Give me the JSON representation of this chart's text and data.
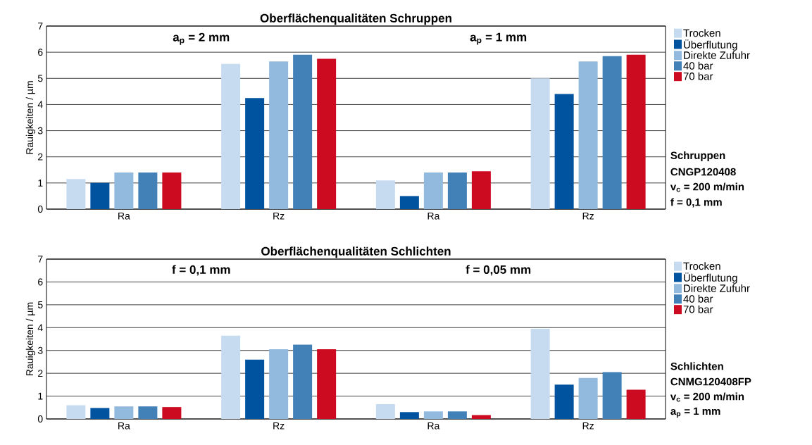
{
  "chart_data": [
    {
      "type": "bar",
      "title": "Oberflächenqualitäten  Schruppen",
      "ylabel": "Rauigkeiten / µm",
      "categories": [
        "Ra",
        "Rz",
        "Ra",
        "Rz"
      ],
      "ylim": [
        0,
        7
      ],
      "yticks": [
        0,
        1,
        2,
        3,
        4,
        5,
        6,
        7
      ],
      "grid": "y",
      "legend": "right",
      "series": [
        {
          "name": "Trocken",
          "color": "#c6dbf0",
          "values": [
            1.15,
            5.55,
            1.1,
            5.0
          ]
        },
        {
          "name": "Überflutung",
          "color": "#00539f",
          "values": [
            1.0,
            4.25,
            0.5,
            4.4
          ]
        },
        {
          "name": "Direkte Zufuhr",
          "color": "#92badf",
          "values": [
            1.4,
            5.65,
            1.4,
            5.65
          ]
        },
        {
          "name": "40 bar",
          "color": "#4280b8",
          "values": [
            1.4,
            5.9,
            1.4,
            5.85
          ]
        },
        {
          "name": "70 bar",
          "color": "#cc0a20",
          "values": [
            1.4,
            5.75,
            1.45,
            5.9
          ]
        }
      ],
      "annotations": [
        "a$_{p}$ = 2 mm",
        "a$_{p}$ = 1 mm",
        "Schruppen",
        "CNGP120408",
        "v$_{c}$ = 200 m/min",
        "f = 0,1 mm"
      ]
    },
    {
      "type": "bar",
      "title": "Oberflächenqualitäten  Schlichten",
      "ylabel": "Rauigkeiten / µm",
      "categories": [
        "Ra",
        "Rz",
        "Ra",
        "Rz"
      ],
      "ylim": [
        0,
        7
      ],
      "yticks": [
        0,
        1,
        2,
        3,
        4,
        5,
        6,
        7
      ],
      "grid": "y",
      "legend": "right",
      "series": [
        {
          "name": "Trocken",
          "color": "#c6dbf0",
          "values": [
            0.6,
            3.65,
            0.65,
            3.95
          ]
        },
        {
          "name": "Überflutung",
          "color": "#00539f",
          "values": [
            0.48,
            2.6,
            0.3,
            1.5
          ]
        },
        {
          "name": "Direkte Zufuhr",
          "color": "#92badf",
          "values": [
            0.55,
            3.05,
            0.33,
            1.8
          ]
        },
        {
          "name": "40 bar",
          "color": "#4280b8",
          "values": [
            0.55,
            3.25,
            0.33,
            2.05
          ]
        },
        {
          "name": "70 bar",
          "color": "#cc0a20",
          "values": [
            0.52,
            3.05,
            0.17,
            1.28
          ]
        }
      ],
      "annotations": [
        "f = 0,1 mm",
        "f = 0,05 mm",
        "Schlichten",
        "CNMG120408FP",
        "v$_{c}$ = 200 m/min",
        "a$_{p}$ = 1 mm"
      ]
    }
  ]
}
